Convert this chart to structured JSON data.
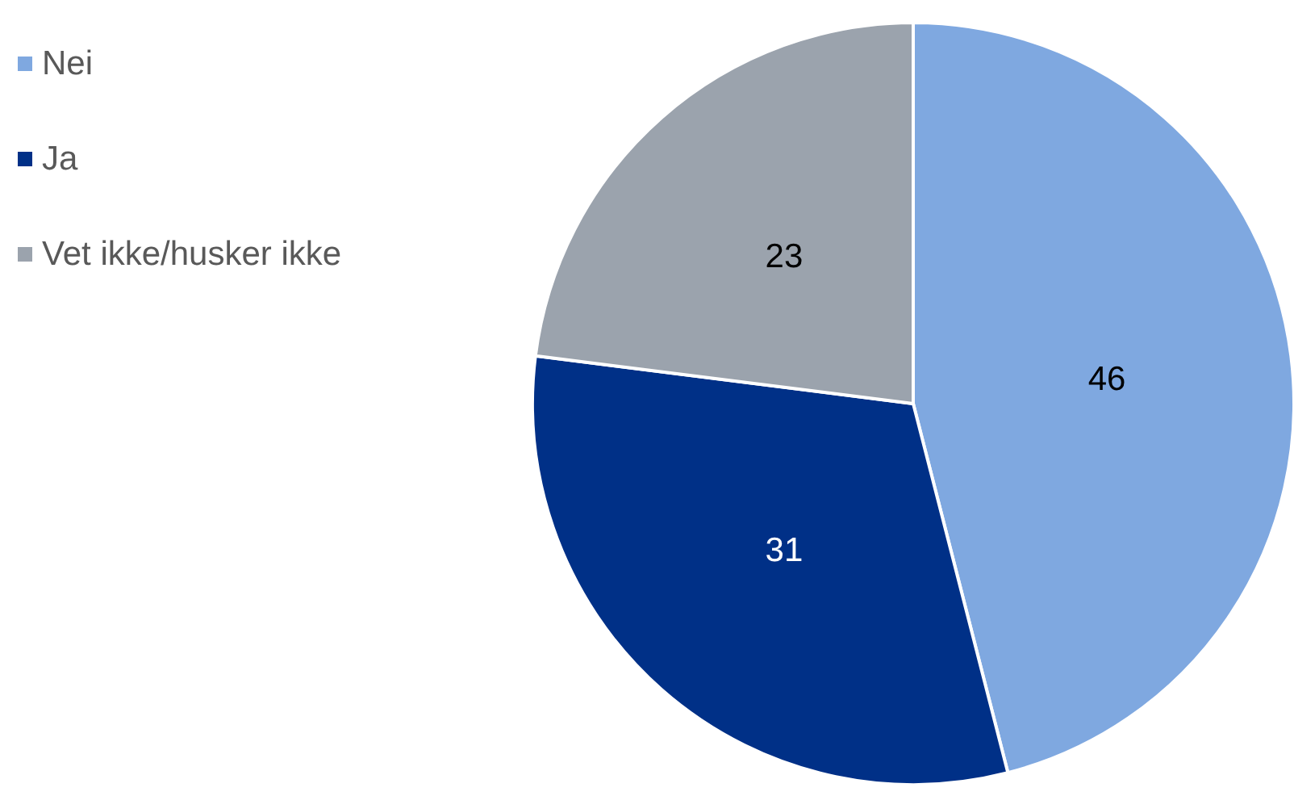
{
  "chart_data": {
    "type": "pie",
    "categories": [
      "Nei",
      "Ja",
      "Vet ikke/husker ikke"
    ],
    "values": [
      46,
      31,
      23
    ],
    "colors": [
      "#7fa8e0",
      "#003087",
      "#9ba3ad"
    ],
    "data_labels": true,
    "legend": "top left"
  }
}
